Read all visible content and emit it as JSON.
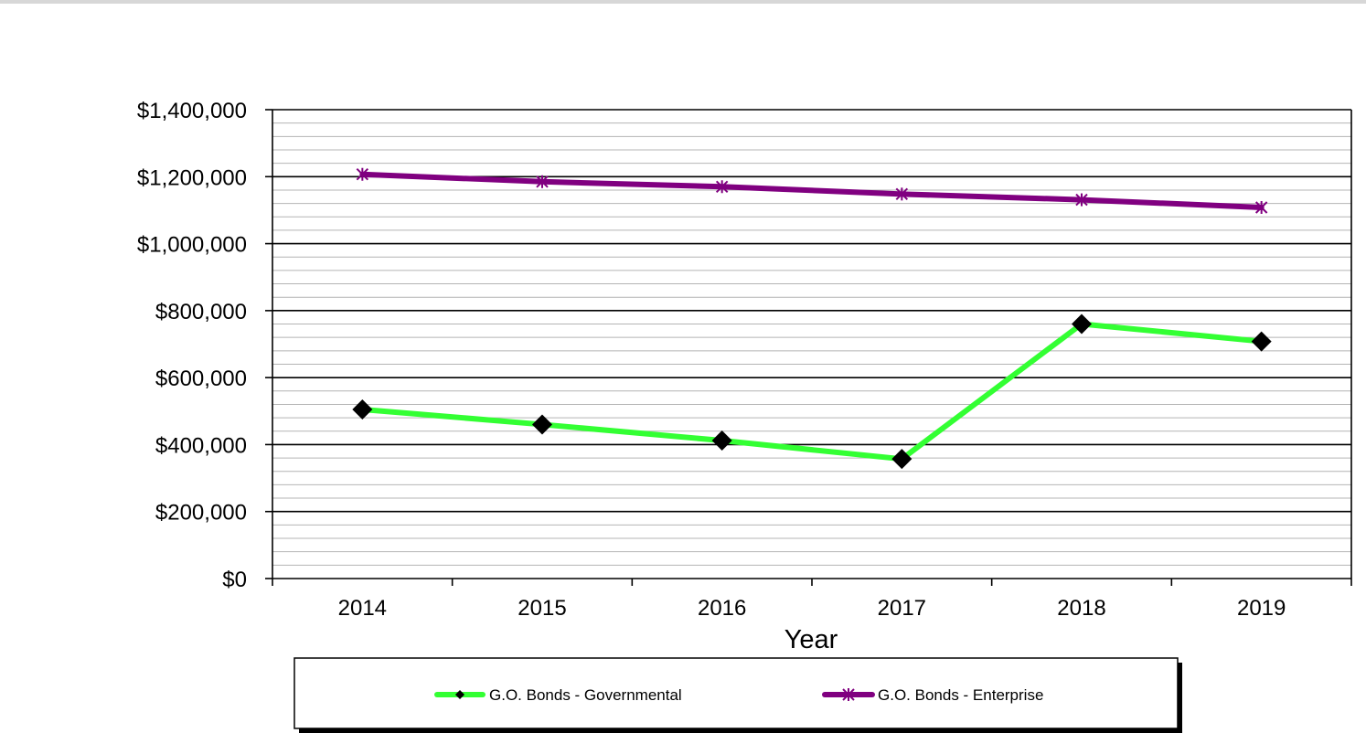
{
  "chart_data": {
    "type": "line",
    "title": "",
    "xlabel": "Year",
    "ylabel": "",
    "categories": [
      "2014",
      "2015",
      "2016",
      "2017",
      "2018",
      "2019"
    ],
    "ylim": [
      0,
      1400000
    ],
    "yticks": [
      0,
      200000,
      400000,
      600000,
      800000,
      1000000,
      1200000,
      1400000
    ],
    "ytick_labels": [
      "$0",
      "$200,000",
      "$400,000",
      "$600,000",
      "$800,000",
      "$1,000,000",
      "$1,200,000",
      "$1,400,000"
    ],
    "grid": true,
    "minor_grid_step": 40000,
    "legend_position": "bottom",
    "series": [
      {
        "name": "G.O. Bonds - Governmental",
        "values": [
          505000,
          460000,
          412000,
          357000,
          760000,
          708000
        ],
        "color": "#33ff33",
        "marker": "diamond",
        "marker_color": "#000000"
      },
      {
        "name": "G.O. Bonds - Enterprise",
        "values": [
          1207000,
          1185000,
          1170000,
          1148000,
          1131000,
          1108000
        ],
        "color": "#800080",
        "marker": "asterisk",
        "marker_color": "#800080"
      }
    ]
  }
}
